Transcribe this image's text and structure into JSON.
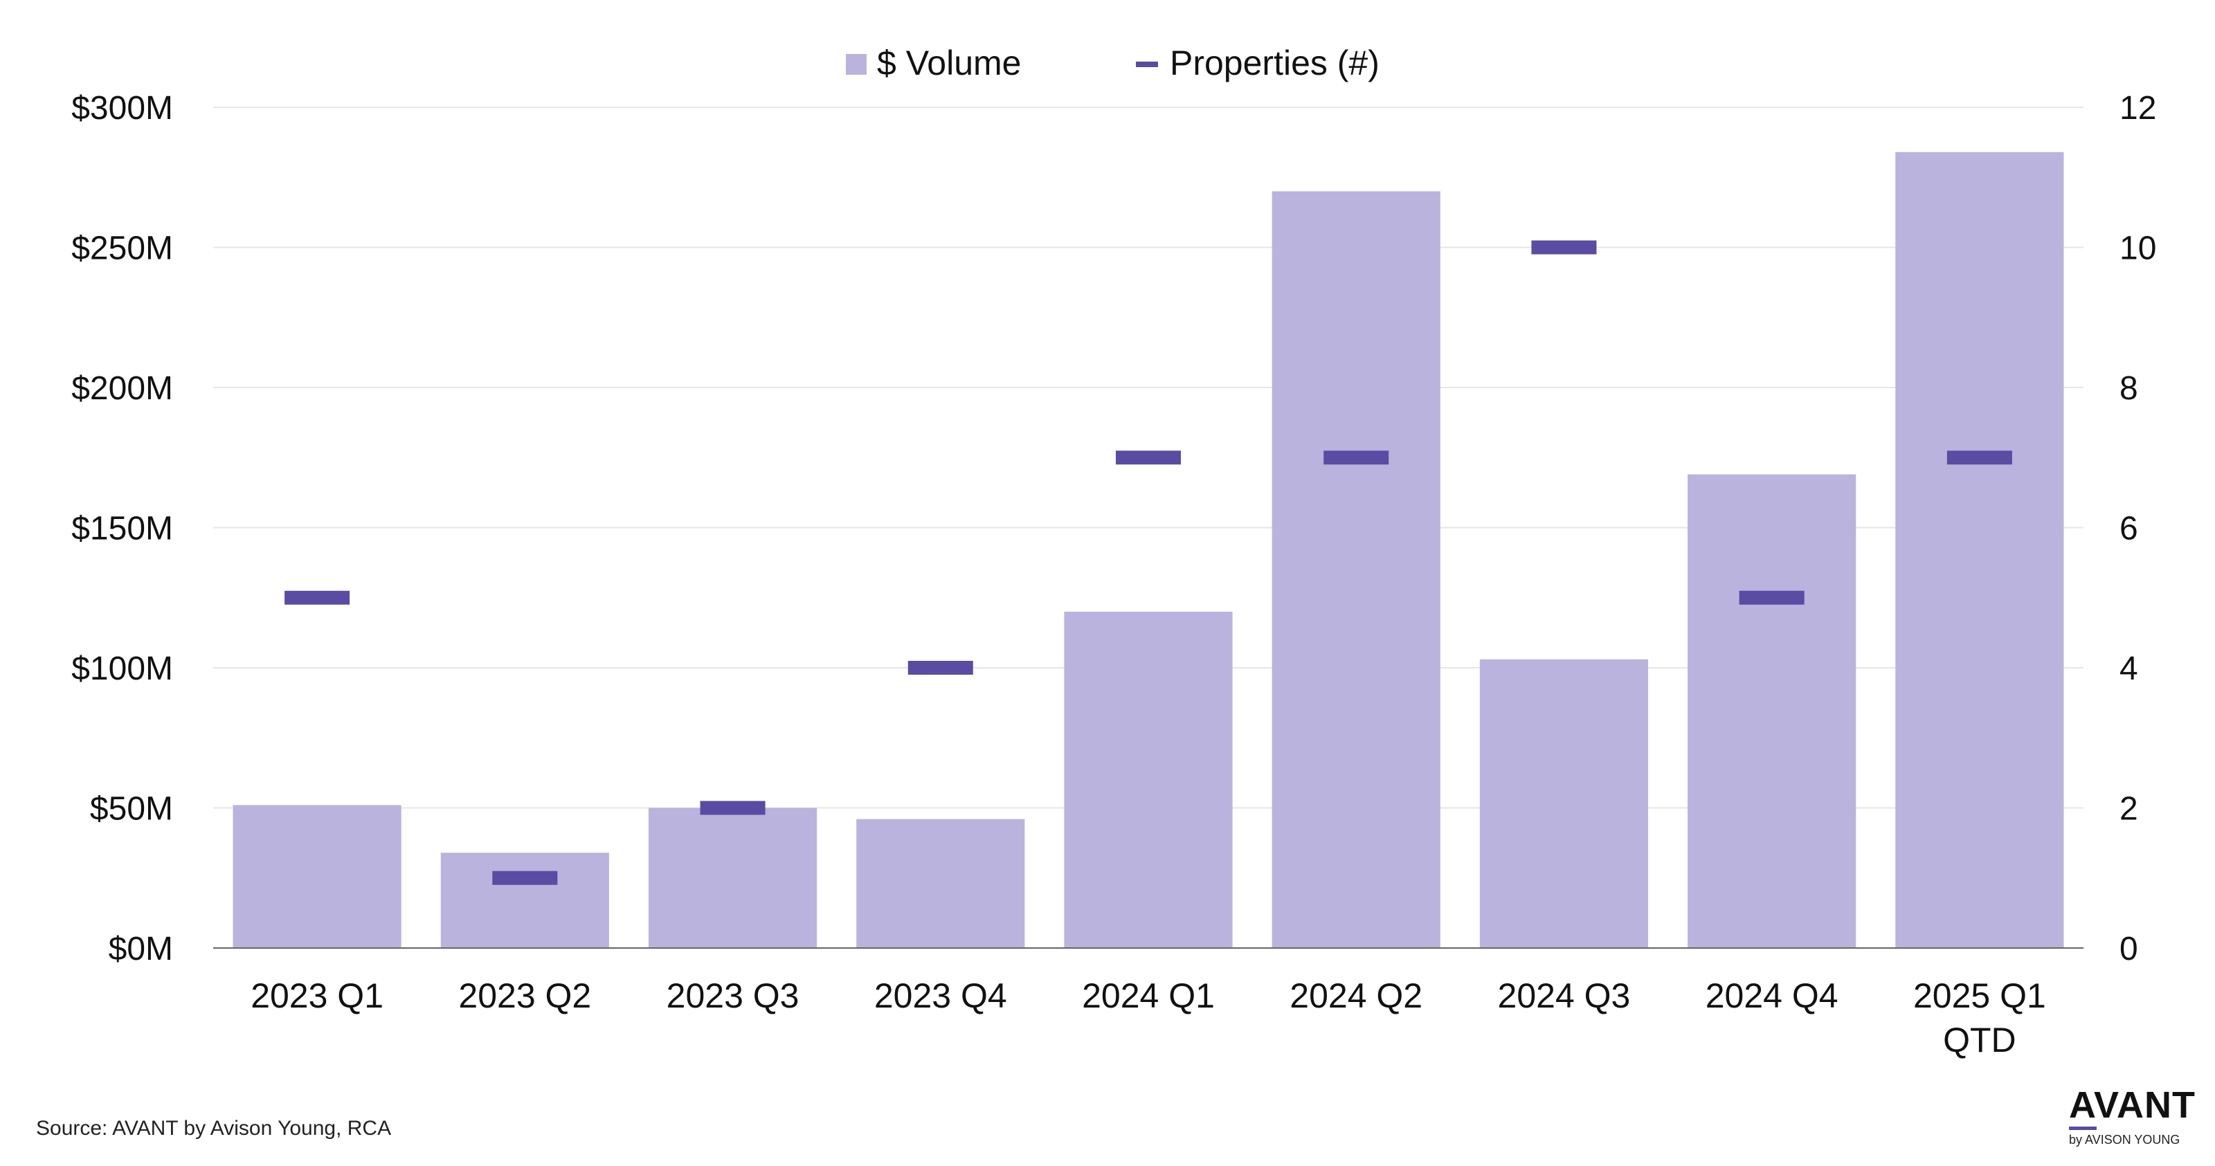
{
  "chart_data": {
    "type": "bar",
    "categories": [
      "2023 Q1",
      "2023 Q2",
      "2023 Q3",
      "2023 Q4",
      "2024 Q1",
      "2024 Q2",
      "2024 Q3",
      "2024 Q4",
      "2025 Q1 QTD"
    ],
    "series": [
      {
        "name": "$ Volume",
        "type": "bar",
        "axis": "left",
        "color": "#b9b3dd",
        "values": [
          51,
          34,
          50,
          46,
          120,
          270,
          103,
          169,
          284
        ]
      },
      {
        "name": "Properties (#)",
        "type": "marker",
        "axis": "right",
        "color": "#5a4ba3",
        "values": [
          5,
          1,
          2,
          4,
          7,
          7,
          10,
          5,
          7
        ]
      }
    ],
    "y_left": {
      "ylim": [
        0,
        300
      ],
      "ticks": [
        "$0M",
        "$50M",
        "$100M",
        "$150M",
        "$200M",
        "$250M",
        "$300M"
      ]
    },
    "y_right": {
      "ylim": [
        0,
        12
      ],
      "ticks": [
        "0",
        "2",
        "4",
        "6",
        "8",
        "10",
        "12"
      ]
    },
    "legend_position": "top-center",
    "grid": true
  },
  "source": "Source: AVANT by Avison Young, RCA",
  "logo": {
    "word": "AVANT",
    "sub": "by AVISON YOUNG"
  }
}
